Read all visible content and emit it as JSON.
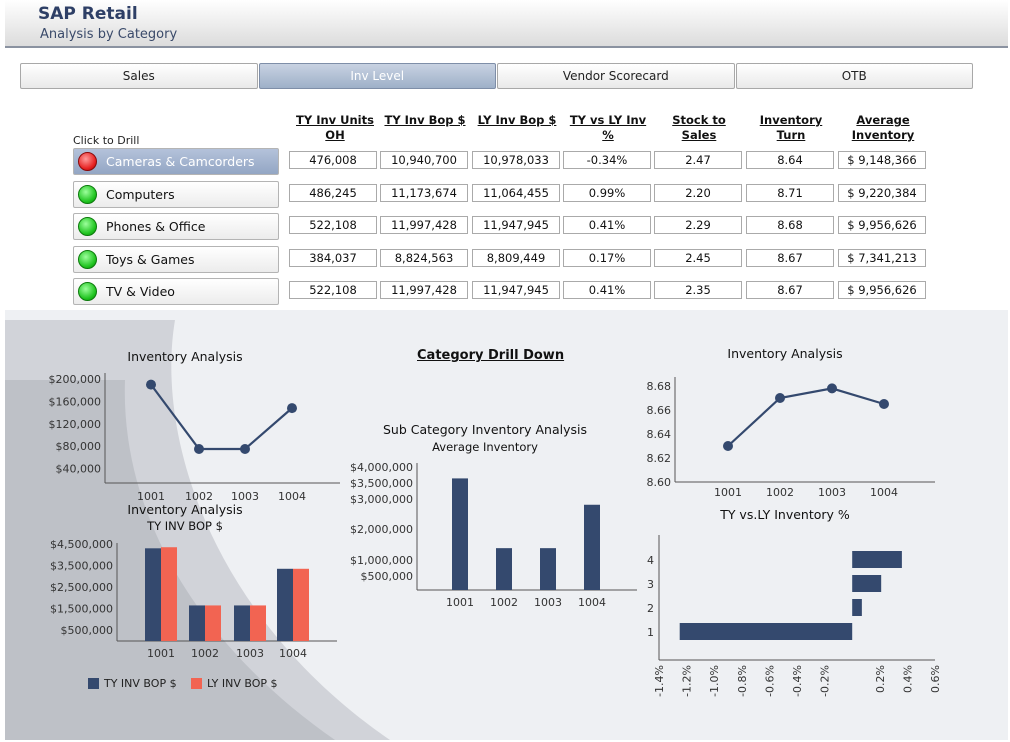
{
  "app": {
    "title": "SAP Retail",
    "subtitle": "Analysis by Category"
  },
  "tabs": [
    {
      "label": "Sales",
      "active": false
    },
    {
      "label": "Inv Level",
      "active": true
    },
    {
      "label": "Vendor Scorecard",
      "active": false
    },
    {
      "label": "OTB",
      "active": false
    }
  ],
  "table": {
    "drill_label": "Click to Drill",
    "headers": [
      "TY Inv Units OH",
      "TY Inv Bop $",
      "LY Inv Bop $",
      "TY vs LY Inv %",
      "Stock to Sales",
      "Inventory Turn",
      "Average Inventory"
    ],
    "rows": [
      {
        "category": "Cameras & Camcorders",
        "status": "red",
        "selected": true,
        "values": [
          "476,008",
          "10,940,700",
          "10,978,033",
          "-0.34%",
          "2.47",
          "8.64",
          "$ 9,148,366"
        ]
      },
      {
        "category": "Computers",
        "status": "green",
        "selected": false,
        "values": [
          "486,245",
          "11,173,674",
          "11,064,455",
          "0.99%",
          "2.20",
          "8.71",
          "$ 9,220,384"
        ]
      },
      {
        "category": "Phones & Office",
        "status": "green",
        "selected": false,
        "values": [
          "522,108",
          "11,997,428",
          "11,947,945",
          "0.41%",
          "2.29",
          "8.68",
          "$ 9,956,626"
        ]
      },
      {
        "category": "Toys & Games",
        "status": "green",
        "selected": false,
        "values": [
          "384,037",
          "8,824,563",
          "8,809,449",
          "0.17%",
          "2.45",
          "8.67",
          "$ 7,341,213"
        ]
      },
      {
        "category": "TV & Video",
        "status": "green",
        "selected": false,
        "values": [
          "522,108",
          "11,997,428",
          "11,947,945",
          "0.41%",
          "2.35",
          "8.67",
          "$ 9,956,626"
        ]
      }
    ]
  },
  "drill_title": "Category Drill Down",
  "colors": {
    "series_dark": "#34496e",
    "series_red": "#f26452",
    "accent": "#2e3f66"
  },
  "chart_data": [
    {
      "type": "line",
      "title": "Inventory Analysis",
      "x": [
        "1001",
        "1002",
        "1003",
        "1004"
      ],
      "values": [
        190000,
        75000,
        75000,
        148000
      ],
      "yticks": [
        "$200,000",
        "$160,000",
        "$120,000",
        "$80,000",
        "$40,000"
      ],
      "ylim": [
        0,
        200000
      ]
    },
    {
      "type": "bar",
      "title": "Inventory Analysis",
      "subtitle": "TY INV BOP $",
      "categories": [
        "1001",
        "1002",
        "1003",
        "1004"
      ],
      "series": [
        {
          "name": "TY INV BOP $",
          "values": [
            4300000,
            1650000,
            1650000,
            3350000
          ]
        },
        {
          "name": "LY INV BOP $",
          "values": [
            4350000,
            1650000,
            1650000,
            3350000
          ]
        }
      ],
      "yticks": [
        "$4,500,000",
        "$3,500,000",
        "$2,500,000",
        "$1,500,000",
        "$500,000"
      ],
      "ylim": [
        0,
        4500000
      ],
      "legend": "bottom"
    },
    {
      "type": "bar",
      "title": "Sub Category Inventory Analysis",
      "subtitle": "Average Inventory",
      "categories": [
        "1001",
        "1002",
        "1003",
        "1004"
      ],
      "values": [
        3600000,
        1350000,
        1350000,
        2750000
      ],
      "yticks": [
        "$4,000,000",
        "$3,500,000",
        "$3,000,000",
        "$2,000,000",
        "$1,000,000",
        "$500,000"
      ],
      "ylim": [
        0,
        4000000
      ]
    },
    {
      "type": "line",
      "title": "Inventory Analysis",
      "x": [
        "1001",
        "1002",
        "1003",
        "1004"
      ],
      "values": [
        8.63,
        8.67,
        8.678,
        8.665
      ],
      "yticks": [
        "8.68",
        "8.66",
        "8.64",
        "8.62",
        "8.60"
      ],
      "ylim": [
        8.6,
        8.68
      ]
    },
    {
      "type": "bar",
      "orientation": "horizontal",
      "title": "TY vs.LY Inventory %",
      "categories": [
        "4",
        "3",
        "2",
        "1"
      ],
      "values": [
        0.0036,
        0.0021,
        0.0007,
        -0.0125
      ],
      "xticks": [
        "-1.4%",
        "-1.2%",
        "-1.0%",
        "-0.8%",
        "-0.6%",
        "-0.4%",
        "-0.2%",
        "0.2%",
        "0.4%",
        "0.6%"
      ],
      "xlim": [
        -0.014,
        0.006
      ]
    }
  ]
}
